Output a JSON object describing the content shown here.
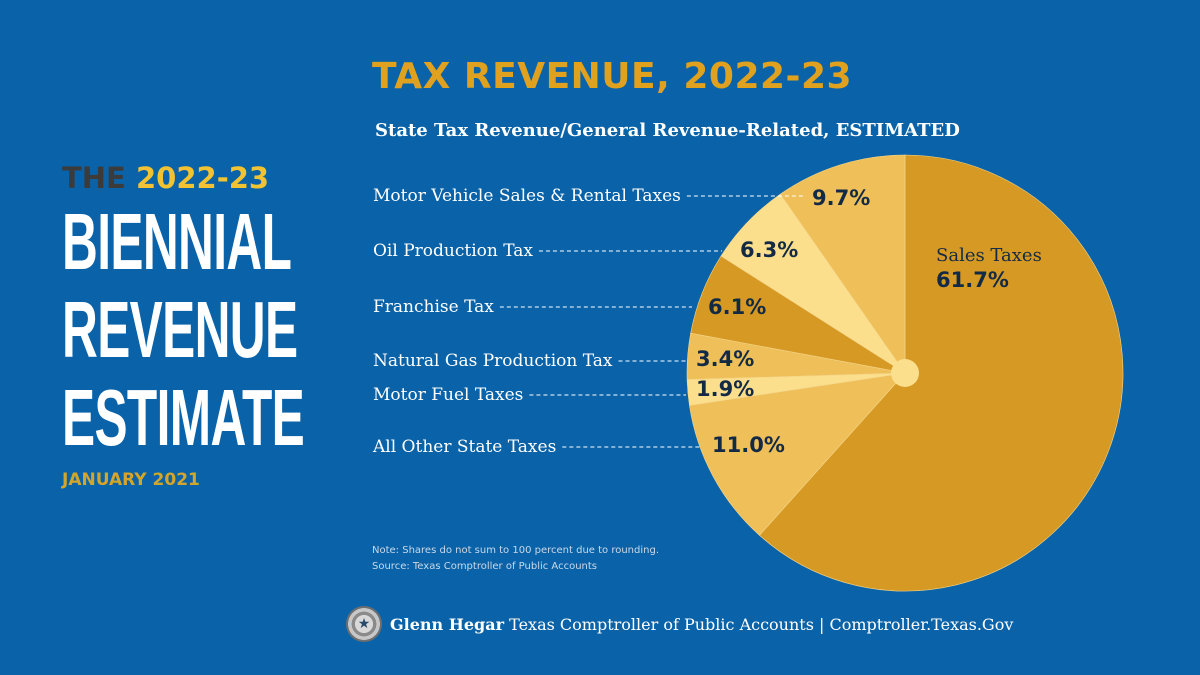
{
  "left": {
    "the": "THE",
    "year": "2022-23",
    "big_lines": [
      "BIENNIAL",
      "REVENUE",
      "ESTIMATE"
    ],
    "date": "JANUARY 2021"
  },
  "footer": {
    "name": "Glenn Hegar",
    "rest": "Texas Comptroller of Public Accounts | Comptroller.Texas.Gov",
    "seal_icon": "★"
  },
  "notes": [
    "Note: Shares do not sum to 100 percent due to rounding.",
    "Source: Texas Comptroller of Public Accounts"
  ],
  "chart_data": {
    "type": "pie",
    "title": "TAX REVENUE, 2022-23",
    "subtitle": "State Tax Revenue/General Revenue-Related, ESTIMATED",
    "slices": [
      {
        "label": "Sales Taxes",
        "value": 61.7,
        "display": "61.7%",
        "color": "#d69a24"
      },
      {
        "label": "All Other State Taxes",
        "value": 11.0,
        "display": "11.0%",
        "color": "#efbf5a"
      },
      {
        "label": "Motor Fuel Taxes",
        "value": 1.9,
        "display": "1.9%",
        "color": "#fbdf8d"
      },
      {
        "label": "Natural Gas Production Tax",
        "value": 3.4,
        "display": "3.4%",
        "color": "#efbf5a"
      },
      {
        "label": "Franchise Tax",
        "value": 6.1,
        "display": "6.1%",
        "color": "#d69a24"
      },
      {
        "label": "Oil Production Tax",
        "value": 6.3,
        "display": "6.3%",
        "color": "#fbdf8d"
      },
      {
        "label": "Motor Vehicle Sales & Rental Taxes",
        "value": 9.7,
        "display": "9.7%",
        "color": "#efbf5a"
      }
    ]
  }
}
